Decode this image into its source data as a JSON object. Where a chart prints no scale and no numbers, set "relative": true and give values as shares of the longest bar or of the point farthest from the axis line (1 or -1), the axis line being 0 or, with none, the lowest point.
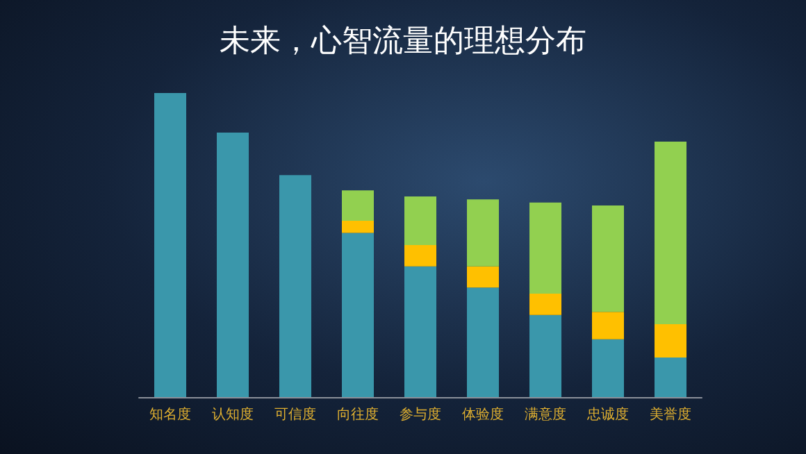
{
  "chart_data": {
    "type": "bar",
    "title": "未来，心智流量的理想分布",
    "categories": [
      "知名度",
      "认知度",
      "可信度",
      "向往度",
      "参与度",
      "体验度",
      "满意度",
      "忠诚度",
      "美誉度"
    ],
    "stacked": true,
    "relative": true,
    "series": [
      {
        "color": "#3a97ab",
        "values": [
          1,
          0.87,
          0.73,
          0.54,
          0.43,
          0.36,
          0.27,
          0.19,
          0.13
        ]
      },
      {
        "color": "#ffc000",
        "values": [
          null,
          null,
          null,
          0.04,
          0.07,
          0.07,
          0.07,
          0.09,
          0.11
        ]
      },
      {
        "color": "#92d050",
        "values": [
          null,
          null,
          null,
          0.1,
          0.16,
          0.22,
          0.3,
          0.35,
          0.6
        ]
      }
    ]
  }
}
